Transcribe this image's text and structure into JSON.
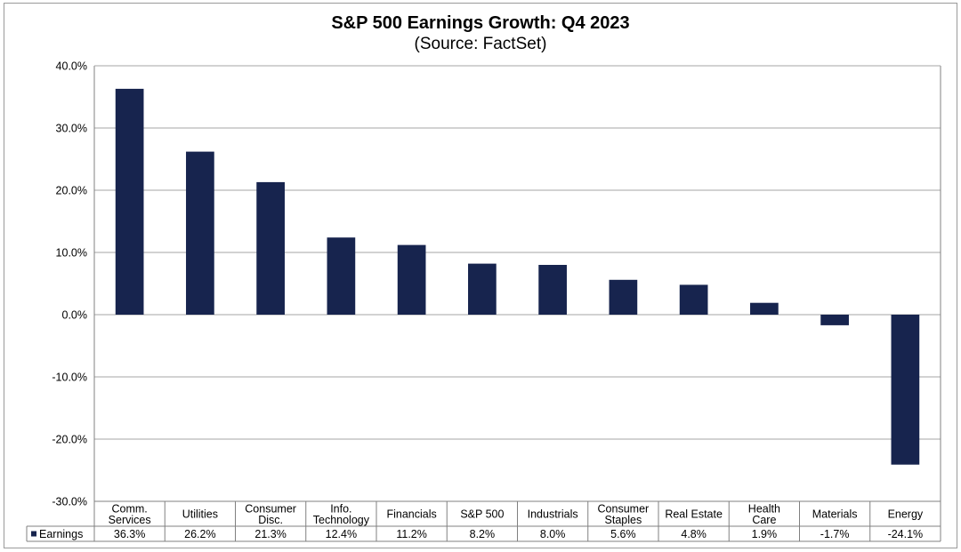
{
  "chart_data": {
    "type": "bar",
    "title": "S&P 500 Earnings Growth:  Q4 2023",
    "subtitle": "(Source: FactSet)",
    "xlabel": "",
    "ylabel": "",
    "categories": [
      [
        "Comm.",
        "Services"
      ],
      [
        "Utilities"
      ],
      [
        "Consumer",
        "Disc."
      ],
      [
        "Info.",
        "Technology"
      ],
      [
        "Financials"
      ],
      [
        "S&P 500"
      ],
      [
        "Industrials"
      ],
      [
        "Consumer",
        "Staples"
      ],
      [
        "Real Estate"
      ],
      [
        "Health",
        "Care"
      ],
      [
        "Materials"
      ],
      [
        "Energy"
      ]
    ],
    "series": [
      {
        "name": "Earnings",
        "values": [
          36.3,
          26.2,
          21.3,
          12.4,
          11.2,
          8.2,
          8.0,
          5.6,
          4.8,
          1.9,
          -1.7,
          -24.1
        ],
        "labels": [
          "36.3%",
          "26.2%",
          "21.3%",
          "12.4%",
          "11.2%",
          "8.2%",
          "8.0%",
          "5.6%",
          "4.8%",
          "1.9%",
          "-1.7%",
          "-24.1%"
        ]
      }
    ],
    "ylim": [
      -30,
      40
    ],
    "yticks": [
      40,
      30,
      20,
      10,
      0,
      -10,
      -20,
      -30
    ],
    "ytick_labels": [
      "40.0%",
      "30.0%",
      "20.0%",
      "10.0%",
      "0.0%",
      "-10.0%",
      "-20.0%",
      "-30.0%"
    ],
    "grid": true,
    "legend": "data-table",
    "bar_color": "#17244e",
    "grid_color": "#a6a6a6"
  }
}
